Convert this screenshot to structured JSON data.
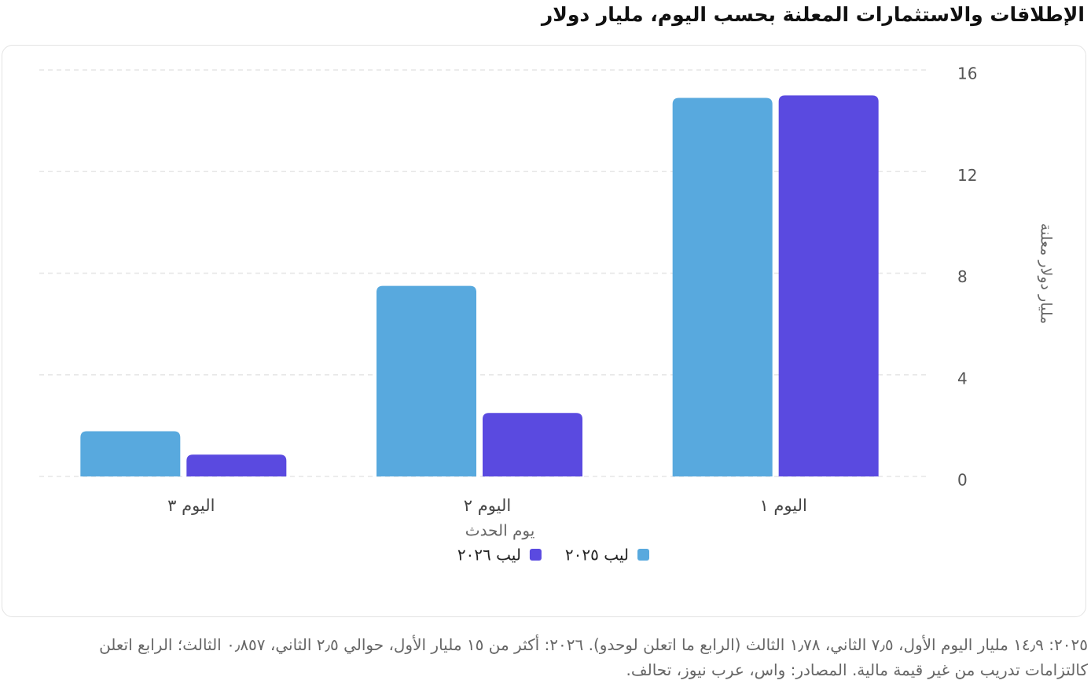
{
  "chart_data": {
    "type": "bar",
    "title": "الإطلاقات والاستثمارات المعلنة بحسب اليوم، مليار دولار",
    "x_label": "يوم الحدث",
    "y_label": "مليار دولار معلنة",
    "categories": [
      "اليوم ١",
      "اليوم ٢",
      "اليوم ٣"
    ],
    "series": [
      {
        "name": "ليب ٢٠٢٥",
        "color": "#58a9de",
        "values": [
          14.9,
          7.5,
          1.78
        ]
      },
      {
        "name": "ليب ٢٠٢٦",
        "color": "#5a4ae0",
        "values": [
          15,
          2.5,
          0.857
        ]
      }
    ],
    "ylim": [
      0,
      16
    ],
    "yticks": [
      0,
      4,
      8,
      12,
      16
    ],
    "grid": true,
    "y_axis_side": "right",
    "note": "٢٠٢٥: ١٤٫٩ مليار اليوم الأول، ٧٫٥ الثاني، ١٫٧٨ الثالث (الرابع ما اتعلن لوحدو). ٢٠٢٦: أكثر من ١٥ مليار الأول، حوالي ٢٫٥ الثاني، ٠٫٨٥٧ الثالث؛ الرابع اتعلن كالتزامات تدريب من غير قيمة مالية. المصادر: واس، عرب نيوز، تحالف."
  }
}
